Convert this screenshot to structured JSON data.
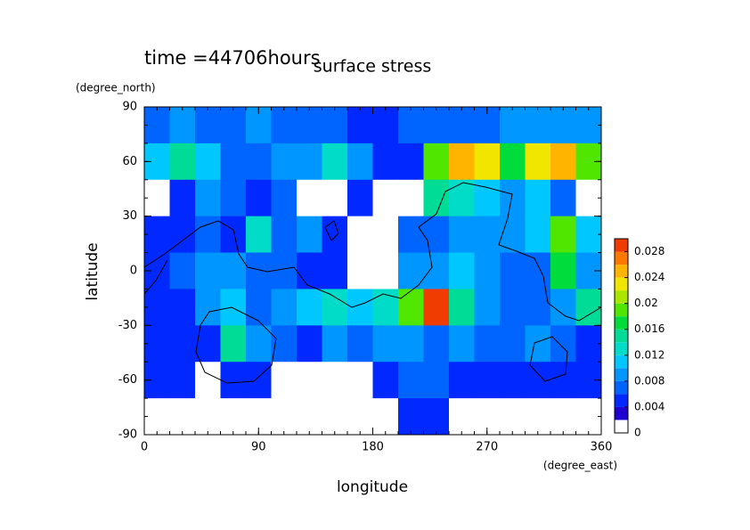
{
  "chart_data": {
    "type": "contour",
    "annotation": "time =44706hours",
    "title": "surface stress",
    "x_label": "longitude",
    "x_unit": "(degree_east)",
    "y_label": "latitude",
    "y_unit": "(degree_north)",
    "xlim": [
      0,
      360
    ],
    "ylim": [
      -90,
      90
    ],
    "xticks": [
      0,
      90,
      180,
      270,
      360
    ],
    "yticks": [
      -90,
      -60,
      -30,
      0,
      30,
      60,
      90
    ],
    "x": [
      10,
      30,
      50,
      70,
      90,
      110,
      130,
      150,
      170,
      190,
      210,
      230,
      250,
      270,
      290,
      310,
      330,
      350
    ],
    "y": [
      80,
      60,
      40,
      20,
      0,
      -20,
      -40,
      -60,
      -80
    ],
    "z": [
      [
        0.006,
        0.008,
        0.006,
        0.006,
        0.008,
        0.006,
        0.006,
        0.006,
        0.004,
        0.004,
        0.006,
        0.006,
        0.006,
        0.006,
        0.008,
        0.008,
        0.008,
        0.008
      ],
      [
        0.01,
        0.014,
        0.01,
        0.006,
        0.006,
        0.008,
        0.008,
        0.012,
        0.008,
        0.004,
        0.004,
        0.018,
        0.024,
        0.022,
        0.016,
        0.022,
        0.024,
        0.018
      ],
      [
        0,
        0.004,
        0.008,
        0.006,
        0.004,
        0.006,
        0,
        0,
        0.004,
        0,
        0,
        0.014,
        0.012,
        0.01,
        0.008,
        0.01,
        0.006,
        0
      ],
      [
        0.004,
        0.004,
        0.006,
        0.004,
        0.012,
        0.006,
        0.008,
        0.004,
        0,
        0,
        0.006,
        0.006,
        0.008,
        0.008,
        0.008,
        0.01,
        0.018,
        0.01
      ],
      [
        0.004,
        0.006,
        0.008,
        0.008,
        0.006,
        0.006,
        0.004,
        0.004,
        0,
        0,
        0.008,
        0.008,
        0.01,
        0.008,
        0.006,
        0.006,
        0.016,
        0.008
      ],
      [
        0.004,
        0.004,
        0.008,
        0.01,
        0.006,
        0.008,
        0.01,
        0.012,
        0.01,
        0.012,
        0.018,
        0.028,
        0.014,
        0.008,
        0.006,
        0.006,
        0.008,
        0.014
      ],
      [
        0.004,
        0.004,
        0.004,
        0.014,
        0.008,
        0.006,
        0.004,
        0.008,
        0.006,
        0.008,
        0.008,
        0.006,
        0.008,
        0.006,
        0.006,
        0.008,
        0.006,
        0.004
      ],
      [
        0.004,
        0.004,
        0,
        0.004,
        0.004,
        0,
        0,
        0,
        0,
        0.004,
        0.006,
        0.006,
        0.004,
        0.004,
        0.004,
        0.004,
        0.004,
        0.004
      ],
      [
        0,
        0,
        0,
        0,
        0,
        0,
        0,
        0,
        0,
        0,
        0.004,
        0.004,
        0,
        0,
        0,
        0,
        0,
        0
      ]
    ],
    "clim": [
      0,
      0.03
    ],
    "clevels": [
      0,
      0.002,
      0.004,
      0.006,
      0.008,
      0.01,
      0.012,
      0.014,
      0.016,
      0.018,
      0.02,
      0.022,
      0.024,
      0.026,
      0.028,
      0.03
    ],
    "colors": [
      "#ffffff",
      "#1e00d2",
      "#0028ff",
      "#0064ff",
      "#0096ff",
      "#00c8ff",
      "#00dcc8",
      "#00dc96",
      "#00dc3c",
      "#50e600",
      "#aae600",
      "#f0e600",
      "#ffb400",
      "#ff7800",
      "#f03c00"
    ],
    "cticks": [
      0,
      0.004,
      0.008,
      0.012,
      0.016,
      0.02,
      0.024,
      0.028
    ]
  }
}
